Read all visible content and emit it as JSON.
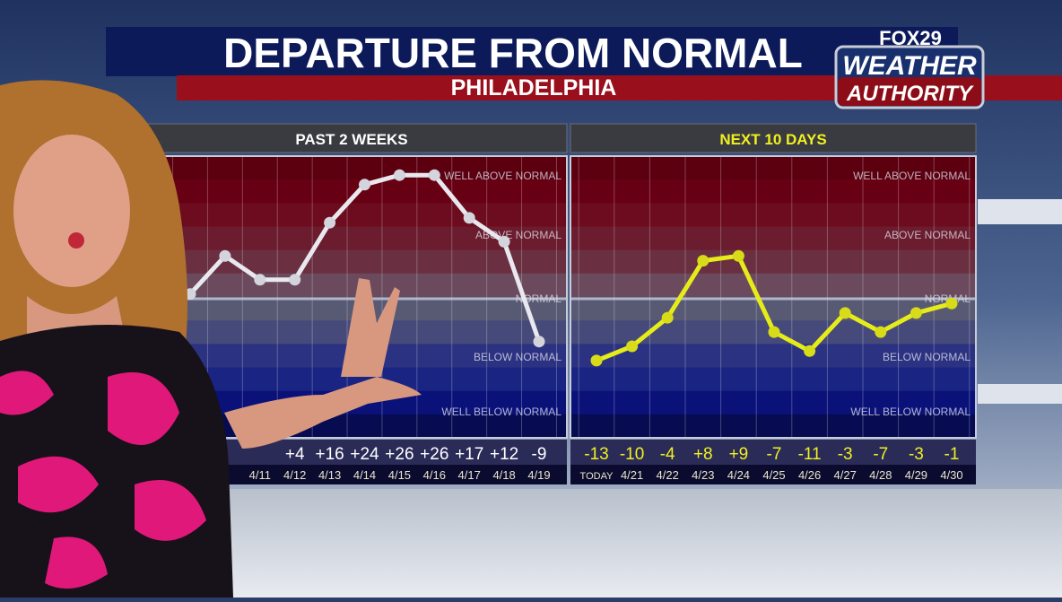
{
  "header": {
    "title": "DEPARTURE FROM NORMAL",
    "subtitle": "PHILADELPHIA",
    "logo": {
      "line1": "FOX29",
      "line2": "WEATHER",
      "line3": "AUTHORITY"
    }
  },
  "colors": {
    "title_bar": "#0c1a5a",
    "subtitle_bar": "#9a0f1c",
    "past_line": "#e8e8ee",
    "next_line": "#e6ec1a",
    "next_text": "#f0f020",
    "normal_line": "#c8cce0"
  },
  "chart_data": [
    {
      "type": "line",
      "title": "PAST 2 WEEKS",
      "band_labels": [
        "WELL ABOVE NORMAL",
        "ABOVE NORMAL",
        "NORMAL",
        "BELOW NORMAL",
        "WELL BELOW NORMAL"
      ],
      "categories": [
        "",
        "",
        "4/11",
        "4/12",
        "4/13",
        "4/14",
        "4/15",
        "4/16",
        "4/17",
        "4/18",
        "4/19"
      ],
      "value_labels": [
        "",
        "",
        "",
        "+4",
        "+16",
        "+24",
        "+26",
        "+26",
        "+17",
        "+12",
        "-9"
      ],
      "values": [
        1,
        9,
        4,
        4,
        16,
        24,
        26,
        26,
        17,
        12,
        -9
      ],
      "ylabel": "",
      "xlabel": "",
      "grid": true
    },
    {
      "type": "line",
      "title": "NEXT 10 DAYS",
      "band_labels": [
        "WELL ABOVE NORMAL",
        "ABOVE NORMAL",
        "NORMAL",
        "BELOW NORMAL",
        "WELL BELOW NORMAL"
      ],
      "categories": [
        "TODAY",
        "4/21",
        "4/22",
        "4/23",
        "4/24",
        "4/25",
        "4/26",
        "4/27",
        "4/28",
        "4/29",
        "4/30"
      ],
      "value_labels": [
        "-13",
        "-10",
        "-4",
        "+8",
        "+9",
        "-7",
        "-11",
        "-3",
        "-7",
        "-3",
        "-1"
      ],
      "values": [
        -13,
        -10,
        -4,
        8,
        9,
        -7,
        -11,
        -3,
        -7,
        -3,
        -1
      ],
      "ylabel": "",
      "xlabel": "",
      "grid": true
    }
  ]
}
